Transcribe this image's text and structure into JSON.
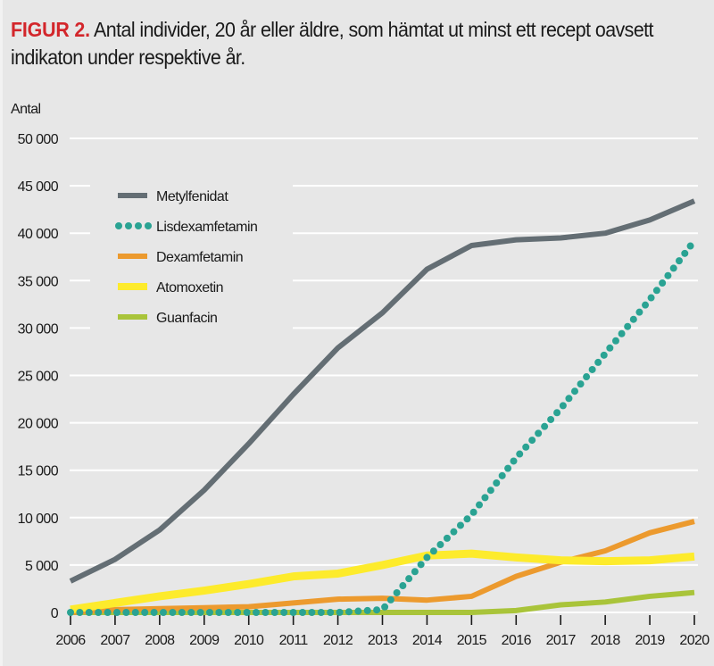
{
  "figure": {
    "label": "FIGUR 2.",
    "caption": " Antal individer, 20 år eller äldre, som hämtat ut minst ett recept oavsett indikaton under respektive år."
  },
  "chart_data": {
    "type": "line",
    "title": "FIGUR 2. Antal individer, 20 år eller äldre, som hämtat ut minst ett recept oavsett indikaton under respektive år.",
    "xlabel": "",
    "ylabel": "Antal",
    "x": [
      "2006",
      "2007",
      "2008",
      "2009",
      "2010",
      "2011",
      "2012",
      "2013",
      "2014",
      "2015",
      "2016",
      "2017",
      "2018",
      "2019",
      "2020"
    ],
    "ylim": [
      0,
      50000
    ],
    "yticks": [
      0,
      5000,
      10000,
      15000,
      20000,
      25000,
      30000,
      35000,
      40000,
      45000,
      50000
    ],
    "ytick_labels": [
      "0",
      "5 000",
      "10 000",
      "15 000",
      "20 000",
      "25 000",
      "30 000",
      "35 000",
      "40 000",
      "45 000",
      "50 000"
    ],
    "grid": "horizontal",
    "legend_position": "top-left",
    "series": [
      {
        "name": "Metylfenidat",
        "color": "#646e74",
        "style": "solid",
        "values": [
          3300,
          5600,
          8700,
          12900,
          17800,
          23000,
          27900,
          31600,
          36200,
          38700,
          39300,
          39500,
          40000,
          41400,
          43400
        ]
      },
      {
        "name": "Lisdexamfetamin",
        "color": "#2aa393",
        "style": "dotted",
        "values": [
          0,
          0,
          0,
          0,
          0,
          0,
          0,
          300,
          5800,
          10300,
          16300,
          21500,
          27300,
          33000,
          39200
        ]
      },
      {
        "name": "Dexamfetamin",
        "color": "#ec9a2e",
        "style": "solid",
        "values": [
          0,
          300,
          400,
          500,
          600,
          1000,
          1400,
          1500,
          1300,
          1700,
          3800,
          5300,
          6500,
          8400,
          9600
        ]
      },
      {
        "name": "Atomoxetin",
        "color": "#fdeb2c",
        "style": "solid",
        "values": [
          300,
          1000,
          1700,
          2300,
          3000,
          3800,
          4100,
          5000,
          6000,
          6200,
          5800,
          5500,
          5400,
          5500,
          5900
        ]
      },
      {
        "name": "Guanfacin",
        "color": "#a9c43a",
        "style": "solid",
        "values": [
          0,
          0,
          0,
          0,
          0,
          0,
          0,
          0,
          0,
          0,
          200,
          800,
          1100,
          1700,
          2100
        ]
      }
    ]
  }
}
